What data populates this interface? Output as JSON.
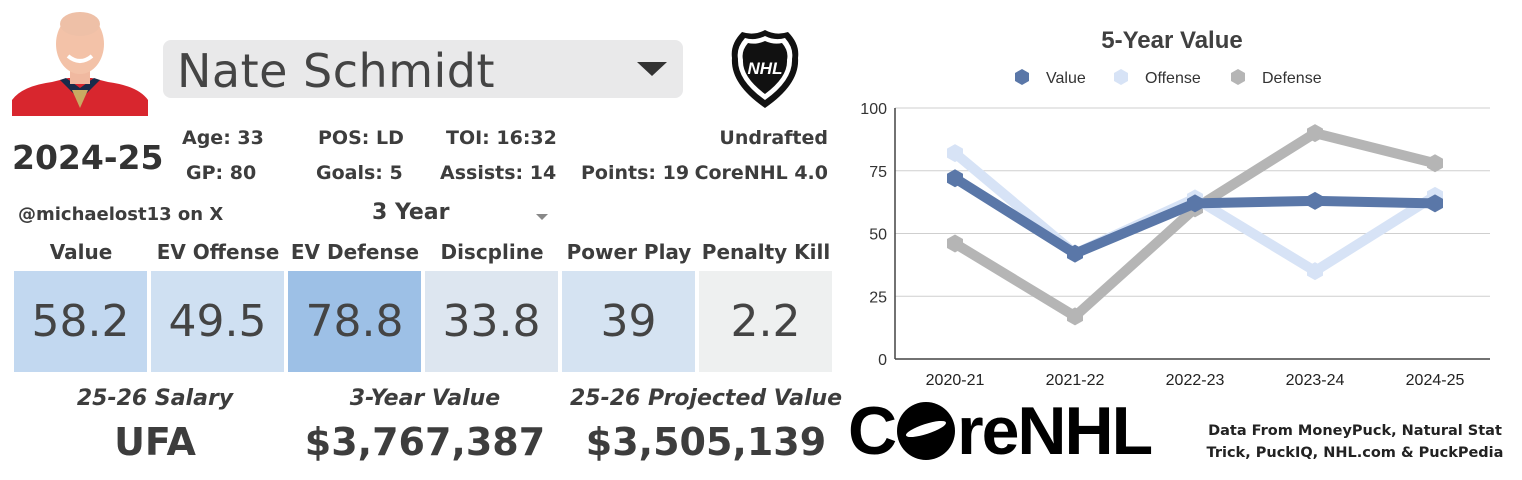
{
  "player": {
    "name": "Nate Schmidt",
    "season": "2024-25"
  },
  "stats": {
    "age": "Age: 33",
    "pos": "POS: LD",
    "toi": "TOI: 16:32",
    "draft": "Undrafted",
    "gp": "GP: 80",
    "goals": "Goals: 5",
    "assists": "Assists: 14",
    "points": "Points: 19",
    "model": "CoreNHL 4.0"
  },
  "handle": "@michaelost13 on X",
  "period_select": {
    "value": "3 Year"
  },
  "categories": [
    {
      "label": "Value",
      "value": "58.2",
      "color": "#c2d8f0"
    },
    {
      "label": "EV Offense",
      "value": "49.5",
      "color": "#cfe0f2"
    },
    {
      "label": "EV Defense",
      "value": "78.8",
      "color": "#9dc0e6"
    },
    {
      "label": "Discpline",
      "value": "33.8",
      "color": "#dde6f0"
    },
    {
      "label": "Power Play",
      "value": "39",
      "color": "#d5e3f2"
    },
    {
      "label": "Penalty Kill",
      "value": "2.2",
      "color": "#eef0f0"
    }
  ],
  "footer": {
    "salary_label": "25-26 Salary",
    "salary_value": "UFA",
    "value3_label": "3-Year Value",
    "value3_value": "$3,767,387",
    "proj_label": "25-26 Projected Value",
    "proj_value": "$3,505,139"
  },
  "brand": {
    "left": "C",
    "right": "reNHL"
  },
  "credits": "Data From MoneyPuck, Natural Stat Trick, PuckIQ, NHL.com & PuckPedia",
  "logo_text": "NHL",
  "chart_data": {
    "type": "line",
    "title": "5-Year Value",
    "categories": [
      "2020-21",
      "2021-22",
      "2022-23",
      "2023-24",
      "2024-25"
    ],
    "ylim": [
      0,
      100
    ],
    "yticks": [
      "0",
      "25",
      "50",
      "75",
      "100"
    ],
    "legend_position": "top",
    "series": [
      {
        "name": "Value",
        "color": "#5a77a8",
        "values": [
          72,
          42,
          62,
          63,
          62
        ]
      },
      {
        "name": "Offense",
        "color": "#d7e3f6",
        "values": [
          82,
          42,
          64,
          35,
          65
        ]
      },
      {
        "name": "Defense",
        "color": "#b5b5b5",
        "values": [
          46,
          17,
          60,
          90,
          78
        ]
      }
    ]
  }
}
